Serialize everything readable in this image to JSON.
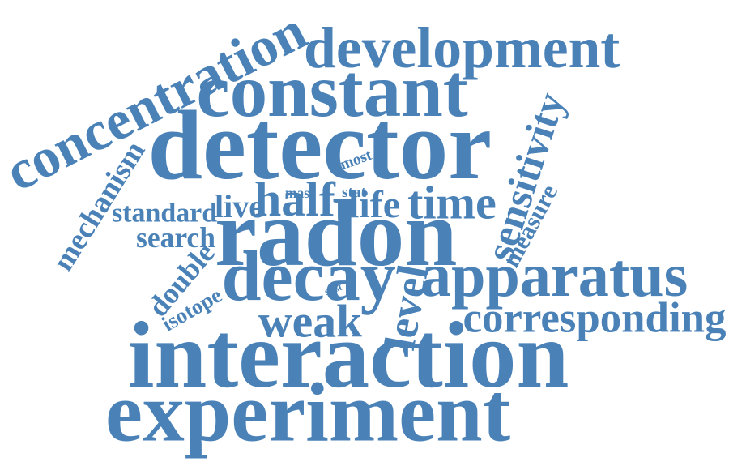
{
  "color": "#4a82b8",
  "words": [
    {
      "id": "experiment",
      "text": "experiment"
    },
    {
      "id": "interaction",
      "text": "interaction"
    },
    {
      "id": "radon",
      "text": "radon"
    },
    {
      "id": "detector",
      "text": "detector"
    },
    {
      "id": "constant",
      "text": "constant"
    },
    {
      "id": "development",
      "text": "development"
    },
    {
      "id": "concentration",
      "text": "concentration"
    },
    {
      "id": "apparatus",
      "text": "apparatus"
    },
    {
      "id": "decay",
      "text": "decay"
    },
    {
      "id": "corresponding",
      "text": "corresponding"
    },
    {
      "id": "sensitivity",
      "text": "sensitivity"
    },
    {
      "id": "time",
      "text": "time"
    },
    {
      "id": "half",
      "text": "half"
    },
    {
      "id": "life",
      "text": "life"
    },
    {
      "id": "weak",
      "text": "weak"
    },
    {
      "id": "level",
      "text": "level"
    },
    {
      "id": "mechanism",
      "text": "mechanism"
    },
    {
      "id": "standard",
      "text": "standard"
    },
    {
      "id": "live",
      "text": "live"
    },
    {
      "id": "search",
      "text": "search"
    },
    {
      "id": "double",
      "text": "double"
    },
    {
      "id": "isotope",
      "text": "isotope"
    },
    {
      "id": "measure",
      "text": "measure"
    },
    {
      "id": "most",
      "text": "most"
    },
    {
      "id": "mas",
      "text": "mas"
    },
    {
      "id": "stat",
      "text": "stat"
    },
    {
      "id": "syst",
      "text": "syst"
    }
  ]
}
